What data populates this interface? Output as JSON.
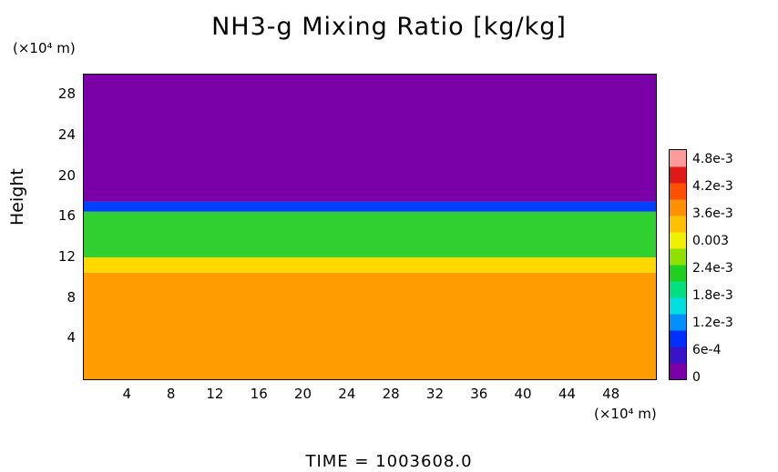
{
  "chart_data": {
    "type": "heatmap",
    "title": "NH3-g Mixing Ratio [kg/kg]",
    "ylabel": "Height",
    "y_unit": "(×10⁴ m)",
    "x_unit": "(×10⁴ m)",
    "xlim": [
      0,
      52
    ],
    "ylim": [
      0,
      30
    ],
    "x_ticks": [
      "4",
      "8",
      "12",
      "16",
      "20",
      "24",
      "28",
      "32",
      "36",
      "40",
      "44",
      "48"
    ],
    "y_ticks": [
      "4",
      "8",
      "12",
      "16",
      "20",
      "24",
      "28"
    ],
    "colorbar": {
      "min": 0,
      "max": 0.005,
      "tick_labels": [
        "4.8e-3",
        "4.2e-3",
        "3.6e-3",
        "0.003",
        "2.4e-3",
        "1.8e-3",
        "1.2e-3",
        "6e-4",
        "0"
      ],
      "colors": [
        "#7b00a8",
        "#3a12c8",
        "#0030ff",
        "#0090ff",
        "#00e0e0",
        "#00e080",
        "#20d020",
        "#90e000",
        "#f0f000",
        "#ffc000",
        "#ff9000",
        "#ff5000",
        "#e01818",
        "#ff9a9a"
      ]
    },
    "layers": [
      {
        "y_range": [
          0,
          10.5
        ],
        "value": 0.0041,
        "color": "#ff9d00"
      },
      {
        "y_range": [
          10.5,
          12.0
        ],
        "value": 0.0037,
        "color": "#ffd800"
      },
      {
        "y_range": [
          12.0,
          16.5
        ],
        "value": 0.0026,
        "color": "#30d030"
      },
      {
        "y_range": [
          16.5,
          17.5
        ],
        "value": 0.0008,
        "color": "#0040ff"
      },
      {
        "y_range": [
          17.5,
          30
        ],
        "value": 0.0,
        "color": "#7a00a8"
      }
    ],
    "time": "TIME  =  1003608.0"
  }
}
